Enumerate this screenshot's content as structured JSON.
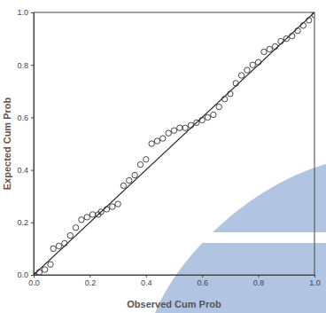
{
  "chart_data": {
    "type": "scatter",
    "x_label": "Observed Cum Prob",
    "y_label": "Expected Cum Prob",
    "x": [
      0.0,
      0.02,
      0.04,
      0.06,
      0.07,
      0.09,
      0.11,
      0.13,
      0.15,
      0.17,
      0.19,
      0.21,
      0.23,
      0.24,
      0.26,
      0.28,
      0.3,
      0.32,
      0.34,
      0.36,
      0.38,
      0.4,
      0.42,
      0.44,
      0.46,
      0.48,
      0.5,
      0.52,
      0.54,
      0.56,
      0.58,
      0.6,
      0.62,
      0.64,
      0.66,
      0.68,
      0.7,
      0.72,
      0.74,
      0.76,
      0.78,
      0.8,
      0.82,
      0.84,
      0.86,
      0.88,
      0.9,
      0.92,
      0.94,
      0.96,
      0.98,
      1.0
    ],
    "values": [
      0.0,
      0.01,
      0.02,
      0.04,
      0.1,
      0.11,
      0.12,
      0.15,
      0.18,
      0.21,
      0.22,
      0.23,
      0.23,
      0.24,
      0.25,
      0.26,
      0.27,
      0.34,
      0.36,
      0.38,
      0.42,
      0.44,
      0.5,
      0.51,
      0.52,
      0.54,
      0.55,
      0.56,
      0.56,
      0.57,
      0.58,
      0.59,
      0.6,
      0.61,
      0.64,
      0.67,
      0.69,
      0.73,
      0.76,
      0.78,
      0.8,
      0.81,
      0.85,
      0.86,
      0.87,
      0.89,
      0.9,
      0.91,
      0.93,
      0.95,
      0.97,
      0.99
    ],
    "color": "#333333",
    "marker": "circle-open",
    "xlim": [
      0,
      1
    ],
    "ylim": [
      0,
      1
    ],
    "xticks": [
      {
        "value": 0,
        "label": "0.0"
      },
      0.2,
      0.4,
      0.6,
      0.8,
      {
        "value": 1,
        "label": "1.0"
      }
    ],
    "yticks": [
      {
        "value": 0,
        "label": "0.0"
      },
      0.2,
      0.4,
      0.6,
      0.8,
      {
        "value": 1,
        "label": "1.0"
      }
    ],
    "grid": false
  }
}
